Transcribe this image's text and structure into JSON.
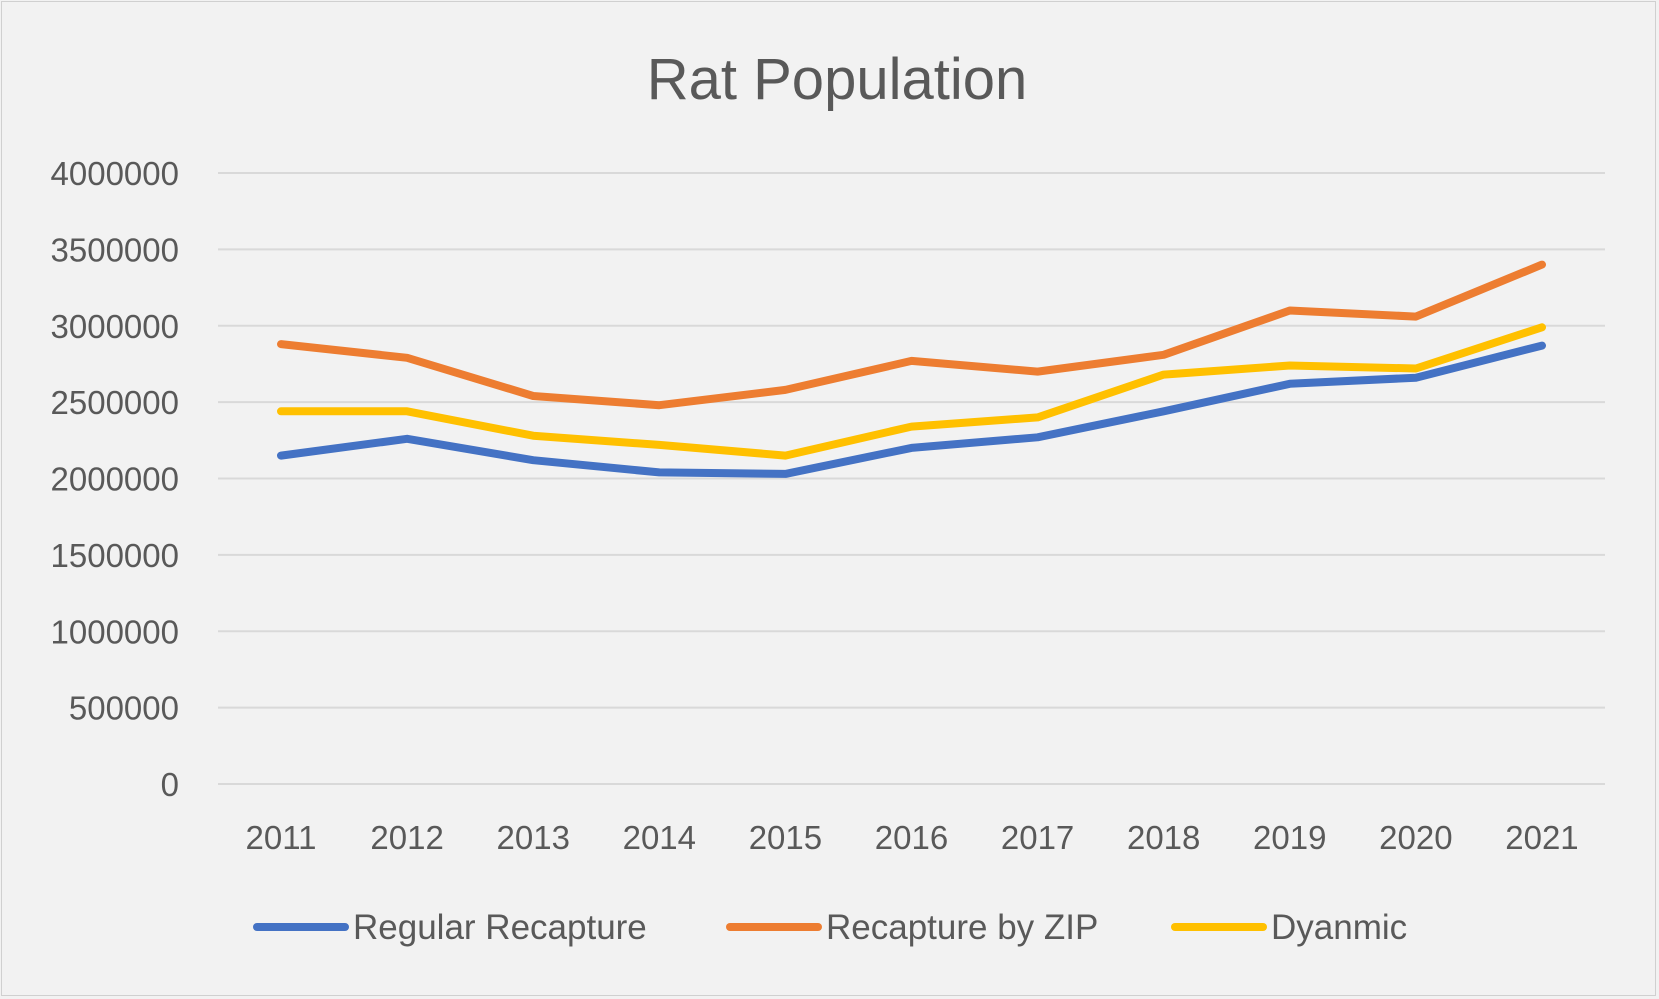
{
  "chart_data": {
    "type": "line",
    "title": "Rat Population",
    "xlabel": "",
    "ylabel": "",
    "categories": [
      "2011",
      "2012",
      "2013",
      "2014",
      "2015",
      "2016",
      "2017",
      "2018",
      "2019",
      "2020",
      "2021"
    ],
    "ylim": [
      0,
      4000000
    ],
    "yticks": [
      "0",
      "500000",
      "1000000",
      "1500000",
      "2000000",
      "2500000",
      "3000000",
      "3500000",
      "4000000"
    ],
    "grid": true,
    "legend_position": "bottom",
    "series": [
      {
        "name": "Regular Recapture",
        "color": "#4472C4",
        "values": [
          2150000,
          2260000,
          2120000,
          2040000,
          2030000,
          2200000,
          2270000,
          2440000,
          2620000,
          2660000,
          2870000
        ]
      },
      {
        "name": "Recapture by ZIP",
        "color": "#ED7D31",
        "values": [
          2880000,
          2790000,
          2540000,
          2480000,
          2580000,
          2770000,
          2700000,
          2810000,
          3100000,
          3060000,
          3400000
        ]
      },
      {
        "name": "Dyanmic",
        "color": "#FFC000",
        "values": [
          2440000,
          2440000,
          2280000,
          2220000,
          2150000,
          2340000,
          2400000,
          2680000,
          2740000,
          2720000,
          2990000
        ]
      }
    ]
  }
}
